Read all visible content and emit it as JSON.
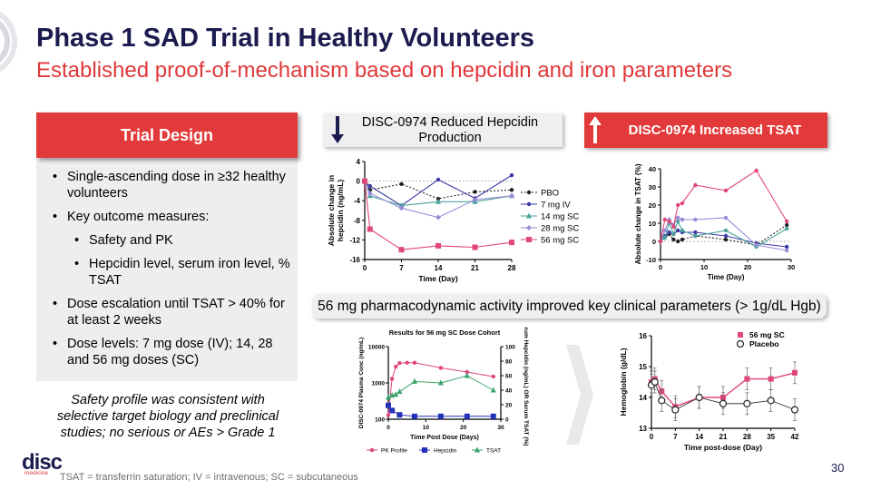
{
  "title": "Phase 1 SAD Trial in Healthy Volunteers",
  "subtitle": "Established proof-of-mechanism based on hepcidin and iron parameters",
  "trial_design": {
    "header": "Trial Design",
    "bullets": [
      "Single-ascending dose in ≥32 healthy volunteers",
      "Key outcome measures:",
      "Safety and PK",
      "Hepcidin level, serum iron level, % TSAT",
      "Dose escalation until TSAT > 40% for at least 2 weeks",
      "Dose levels: 7 mg dose (IV); 14, 28 and 56 mg doses (SC)"
    ],
    "safety": "Safety profile was consistent with selective target biology and preclinical studies; no serious or AEs > Grade 1"
  },
  "hepcidin_header": "DISC-0974 Reduced Hepcidin Production",
  "tsat_header": "DISC-0974 Increased TSAT",
  "pd_header": "56 mg pharmacodynamic activity improved key clinical parameters (> 1g/dL Hgb)",
  "footnote": "TSAT = transferrin saturation; IV = intravenous; SC = subcutaneous",
  "page_number": "30",
  "logo": {
    "text": "disc",
    "sub": "medicine"
  },
  "colors": {
    "navy": "#1b1b4f",
    "red": "#e23a3a",
    "panel": "#eeeeef"
  },
  "chart_data": [
    {
      "id": "hepcidin",
      "type": "line",
      "title": "",
      "xlabel": "Time (Day)",
      "ylabel": "Absolute change in hepcidin (ng/mL)",
      "xlim": [
        0,
        28
      ],
      "ylim": [
        -16,
        4
      ],
      "xticks": [
        0,
        7,
        14,
        21,
        28
      ],
      "yticks": [
        -16,
        -12,
        -8,
        -4,
        0,
        4
      ],
      "series": [
        {
          "name": "PBO",
          "color": "#222222",
          "marker": "circle",
          "dashed": true,
          "x": [
            0,
            1,
            7,
            14,
            21,
            28
          ],
          "y": [
            0,
            -1.8,
            -0.6,
            -3.6,
            -2.2,
            -1.8
          ]
        },
        {
          "name": "7 mg IV",
          "color": "#3a3aa6",
          "marker": "circle",
          "dashed": false,
          "x": [
            0,
            1,
            7,
            14,
            21,
            28
          ],
          "y": [
            0,
            -1.0,
            -5.0,
            0.3,
            -3.5,
            1.2
          ]
        },
        {
          "name": "14 mg SC",
          "color": "#4aa39a",
          "marker": "triangle",
          "dashed": false,
          "x": [
            0,
            1,
            7,
            14,
            21,
            28
          ],
          "y": [
            0,
            -3.0,
            -5.0,
            -4.2,
            -4.2,
            -3.0
          ]
        },
        {
          "name": "28 mg SC",
          "color": "#9b8ad6",
          "marker": "diamond",
          "dashed": false,
          "x": [
            0,
            1,
            7,
            14,
            21,
            28
          ],
          "y": [
            0,
            -2.5,
            -5.5,
            -7.4,
            -3.8,
            -3.0
          ]
        },
        {
          "name": "56 mg SC",
          "color": "#e0457b",
          "marker": "square",
          "dashed": false,
          "x": [
            0,
            1,
            7,
            14,
            21,
            28
          ],
          "y": [
            0,
            -9.8,
            -14.0,
            -13.2,
            -13.5,
            -12.5
          ]
        }
      ]
    },
    {
      "id": "tsat",
      "type": "line",
      "title": "",
      "xlabel": "Time (Day)",
      "ylabel": "Absolute change in TSAT (%)",
      "xlim": [
        0,
        30
      ],
      "ylim": [
        -10,
        40
      ],
      "xticks": [
        0,
        10,
        20,
        30
      ],
      "yticks": [
        -10,
        0,
        10,
        20,
        30,
        40
      ],
      "series": [
        {
          "name": "PBO",
          "color": "#222222",
          "dashed": true,
          "x": [
            0,
            1,
            2,
            3,
            4,
            5,
            8,
            15,
            22,
            29
          ],
          "y": [
            0,
            2,
            4,
            1,
            0,
            1,
            3,
            1,
            -2,
            9
          ]
        },
        {
          "name": "7 mg IV",
          "color": "#3a3aa6",
          "dashed": false,
          "x": [
            0,
            1,
            2,
            3,
            4,
            5,
            8,
            15,
            22,
            29
          ],
          "y": [
            0,
            3,
            5,
            4,
            6,
            5,
            5,
            3,
            -1,
            -3
          ]
        },
        {
          "name": "14 mg SC",
          "color": "#4aa39a",
          "dashed": false,
          "x": [
            0,
            1,
            2,
            3,
            4,
            5,
            8,
            15,
            22,
            29
          ],
          "y": [
            0,
            2,
            10,
            4,
            11,
            6,
            3,
            6,
            -3,
            7
          ]
        },
        {
          "name": "28 mg SC",
          "color": "#9b8ad6",
          "dashed": false,
          "x": [
            0,
            1,
            2,
            3,
            4,
            5,
            8,
            15,
            22,
            29
          ],
          "y": [
            0,
            6,
            12,
            9,
            13,
            12,
            12,
            13,
            -2,
            -5
          ]
        },
        {
          "name": "56 mg SC",
          "color": "#e0457b",
          "dashed": false,
          "x": [
            0,
            1,
            2,
            3,
            4,
            5,
            8,
            15,
            22,
            29
          ],
          "y": [
            0,
            12,
            11,
            8,
            20,
            21,
            31,
            28,
            39,
            11
          ]
        }
      ]
    },
    {
      "id": "cohort56",
      "type": "line",
      "title": "Results for 56 mg SC Dose  Cohort",
      "xlabel": "Time Post Dose (Days)",
      "ylabel": "DISC-0974 Plasma Conc (ng/mL)",
      "y2label": "Serum Hepcidin (ng/mL) OR Serum TSAT (%)",
      "xlim": [
        0,
        30
      ],
      "xticks": [
        0,
        10,
        20,
        30
      ],
      "yticks_log": [
        "100",
        "1000",
        "10000"
      ],
      "y2ticks": [
        0,
        20,
        40,
        60,
        80,
        100
      ],
      "series": [
        {
          "name": "PK Profile",
          "color": "#e0457b",
          "axis": "left",
          "marker": "circle",
          "x": [
            0,
            1,
            2,
            3,
            5,
            7,
            14,
            21,
            28
          ],
          "y": [
            130,
            1300,
            2800,
            3500,
            3600,
            3600,
            2600,
            2000,
            1500
          ]
        },
        {
          "name": "Hepcidin",
          "color": "#2431b8",
          "axis": "right",
          "marker": "square",
          "x": [
            0,
            1,
            3,
            7,
            14,
            21,
            28
          ],
          "y": [
            19,
            12,
            6,
            4,
            4,
            4,
            4
          ]
        },
        {
          "name": "TSAT",
          "color": "#3aa36a",
          "axis": "right",
          "marker": "triangle",
          "x": [
            0,
            1,
            2,
            3,
            7,
            14,
            21,
            28
          ],
          "y": [
            30,
            33,
            34,
            38,
            52,
            50,
            60,
            40
          ]
        }
      ]
    },
    {
      "id": "hemoglobin",
      "type": "line",
      "title": "",
      "xlabel": "Time post-dose (Day)",
      "ylabel": "Hemoglobin (g/dL)",
      "xlim": [
        0,
        42
      ],
      "ylim": [
        13,
        16
      ],
      "xticks": [
        0,
        7,
        14,
        21,
        28,
        35,
        42
      ],
      "yticks": [
        13,
        14,
        15,
        16
      ],
      "series": [
        {
          "name": "56 mg SC",
          "color": "#e0457b",
          "marker": "square",
          "x": [
            0,
            1,
            3,
            7,
            14,
            21,
            28,
            35,
            42
          ],
          "y": [
            14.5,
            14.6,
            14.2,
            13.7,
            14.0,
            14.0,
            14.6,
            14.6,
            14.8
          ]
        },
        {
          "name": "Placebo",
          "color": "#222222",
          "marker": "open-circle",
          "x": [
            0,
            1,
            3,
            7,
            14,
            21,
            28,
            35,
            42
          ],
          "y": [
            14.4,
            14.5,
            13.9,
            13.6,
            14.0,
            13.8,
            13.8,
            13.9,
            13.6
          ]
        }
      ]
    }
  ]
}
